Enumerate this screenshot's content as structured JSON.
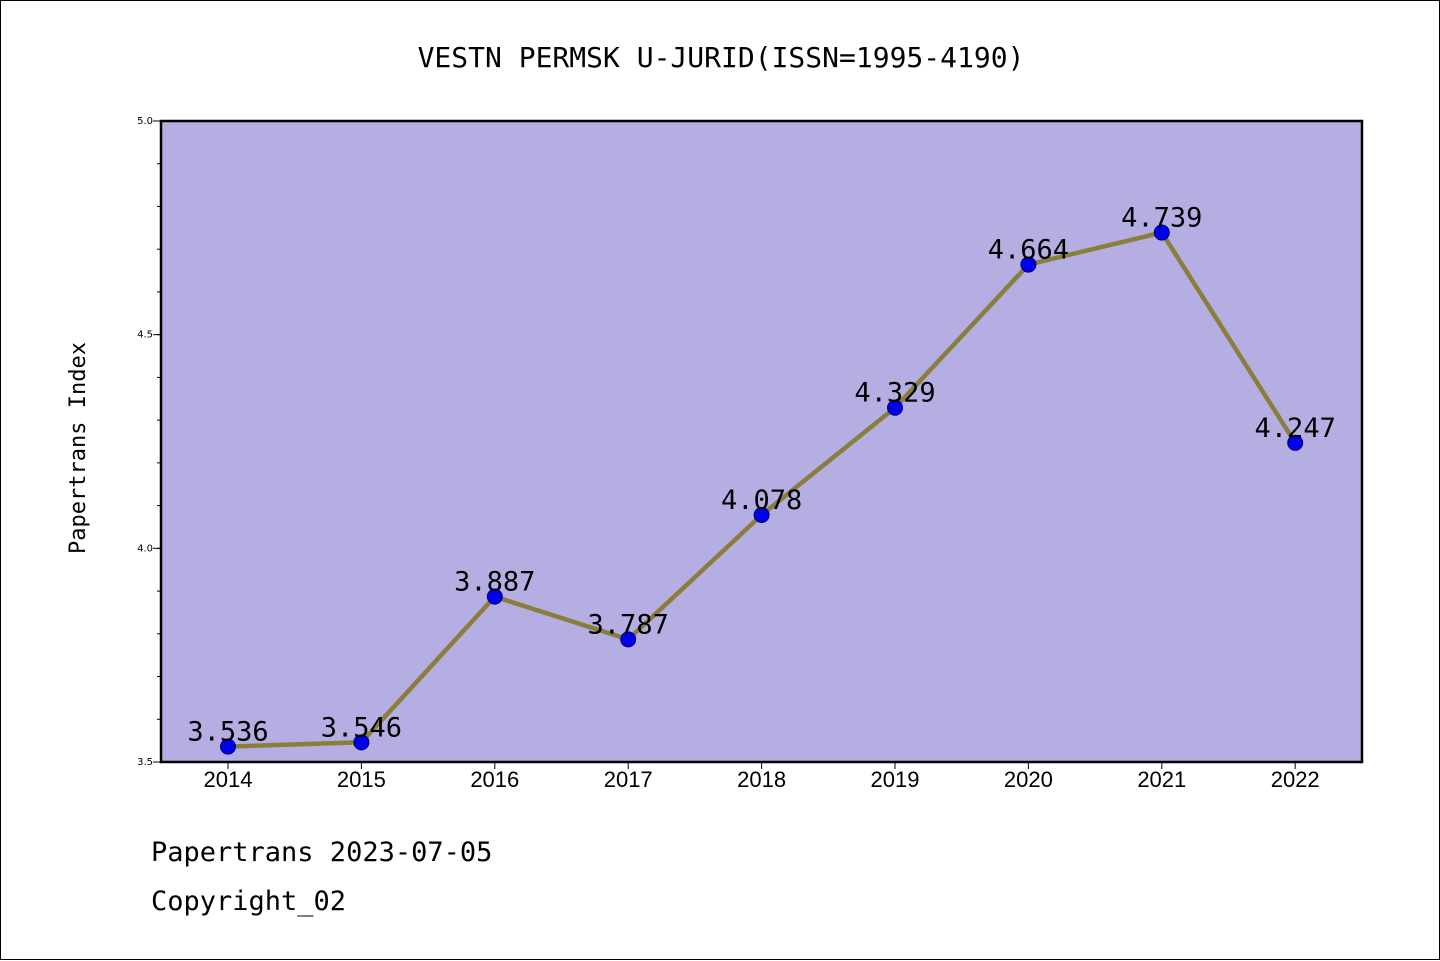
{
  "chart_data": {
    "type": "line",
    "title": "VESTN PERMSK U-JURID(ISSN=1995-4190)",
    "xlabel": "",
    "ylabel": "Papertrans Index",
    "categories": [
      "2014",
      "2015",
      "2016",
      "2017",
      "2018",
      "2019",
      "2020",
      "2021",
      "2022"
    ],
    "values": [
      3.536,
      3.546,
      3.887,
      3.787,
      4.078,
      4.329,
      4.664,
      4.739,
      4.247
    ],
    "data_labels": [
      "3.536",
      "3.546",
      "3.887",
      "3.787",
      "4.078",
      "4.329",
      "4.664",
      "4.739",
      "4.247"
    ],
    "ylim": [
      3.5,
      5.0
    ],
    "yticks": [
      3.5,
      4.0,
      4.5,
      5.0
    ],
    "ytick_labels": [
      "3.5",
      "4.0",
      "4.5",
      "5.0"
    ],
    "y_minor_step": 0.1,
    "grid": false,
    "legend": "none",
    "colors": {
      "plot_background": "#b5aee3",
      "line": "#8b7d3c",
      "marker": "#0000ee",
      "axis": "#000000"
    }
  },
  "footer": {
    "source": "Papertrans 2023-07-05",
    "copyright": "Copyright_02"
  }
}
